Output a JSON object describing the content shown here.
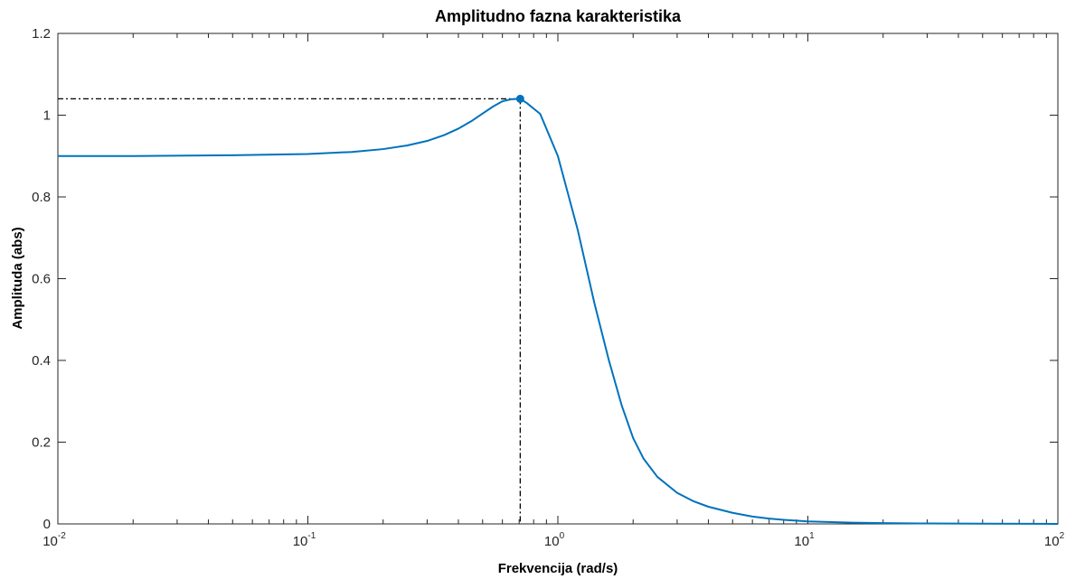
{
  "chart_data": {
    "type": "line",
    "title": "Amplitudno fazna karakteristika",
    "xlabel": "Frekvencija  (rad/s)",
    "ylabel": "Amplituda (abs)",
    "xscale": "log",
    "xlim": [
      0.01,
      100
    ],
    "ylim": [
      0,
      1.2
    ],
    "grid": false,
    "x_ticks": [
      {
        "base": "10",
        "exp": "-2",
        "value": 0.01
      },
      {
        "base": "10",
        "exp": "-1",
        "value": 0.1
      },
      {
        "base": "10",
        "exp": "0",
        "value": 1
      },
      {
        "base": "10",
        "exp": "1",
        "value": 10
      },
      {
        "base": "10",
        "exp": "2",
        "value": 100
      }
    ],
    "y_ticks": [
      "0",
      "0.2",
      "0.4",
      "0.6",
      "0.8",
      "1",
      "1.2"
    ],
    "line_color": "#0072BD",
    "marker_line_color": "#000000",
    "series": [
      {
        "x": [
          0.01,
          0.02,
          0.05,
          0.1,
          0.15,
          0.2,
          0.25,
          0.3,
          0.35,
          0.4,
          0.45,
          0.5,
          0.55,
          0.6,
          0.65,
          0.707,
          0.75,
          0.85,
          1.0,
          1.2,
          1.4,
          1.6,
          1.8,
          2.0,
          2.2,
          2.5,
          3.0,
          3.5,
          4.0,
          5.0,
          6.0,
          7.0,
          8.0,
          10,
          15,
          20,
          30,
          50,
          100
        ],
        "y": [
          0.9,
          0.9,
          0.902,
          0.905,
          0.91,
          0.917,
          0.926,
          0.937,
          0.951,
          0.967,
          0.985,
          1.004,
          1.021,
          1.034,
          1.039,
          1.04,
          1.03,
          1.003,
          0.9,
          0.72,
          0.54,
          0.4,
          0.29,
          0.21,
          0.16,
          0.115,
          0.076,
          0.055,
          0.042,
          0.027,
          0.018,
          0.013,
          0.01,
          0.006,
          0.003,
          0.002,
          0.001,
          0.0005,
          0.0001
        ]
      }
    ],
    "peak_marker": {
      "x": 0.707,
      "y": 1.04
    }
  }
}
